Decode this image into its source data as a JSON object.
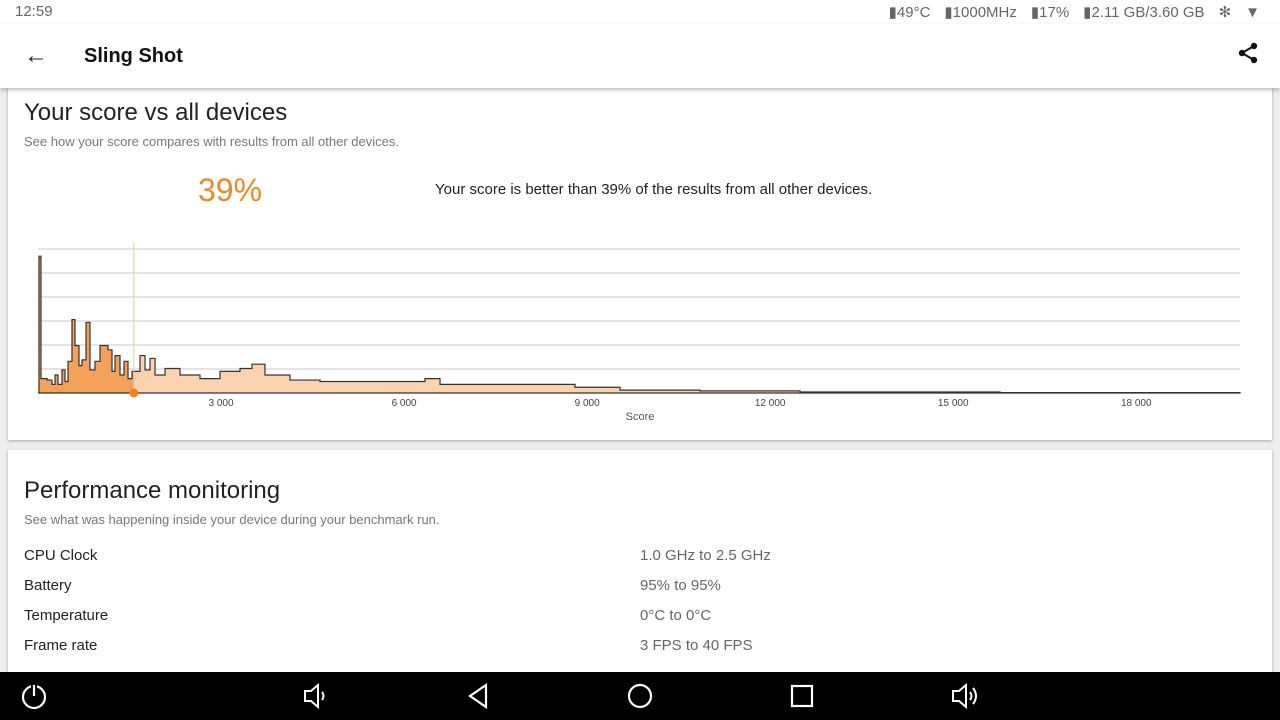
{
  "status": {
    "time": "12:59",
    "cpu_temp": "49°C",
    "cpu_freq": "1000MHz",
    "cpu_load": "17%",
    "ram": "2.11 GB/3.60 GB",
    "icons": [
      "bluetooth-icon",
      "wifi-icon"
    ]
  },
  "appbar": {
    "title": "Sling Shot"
  },
  "score_card": {
    "title": "Your score vs all devices",
    "subtitle": "See how your score compares with results from all other devices.",
    "percent": "39%",
    "summary": "Your score is better than 39% of the results from all other devices."
  },
  "chart_data": {
    "type": "area",
    "xlabel": "Score",
    "ylabel": "",
    "xlim": [
      0,
      19700
    ],
    "ylim": [
      0,
      100
    ],
    "grid": true,
    "x_ticks": [
      "3 000",
      "6 000",
      "9 000",
      "12 000",
      "15 000",
      "18 000"
    ],
    "x_tick_values": [
      3000,
      6000,
      9000,
      12000,
      15000,
      18000
    ],
    "your_score": 1570,
    "colors": {
      "below": "#f4a15a",
      "above": "#fbd3b0",
      "marker": "#f58220"
    },
    "points": [
      [
        0,
        0
      ],
      [
        16,
        95
      ],
      [
        49,
        10
      ],
      [
        148,
        9
      ],
      [
        229,
        6
      ],
      [
        279,
        12.5
      ],
      [
        328,
        6
      ],
      [
        393,
        16
      ],
      [
        443,
        8
      ],
      [
        492,
        22
      ],
      [
        557,
        51
      ],
      [
        606,
        33
      ],
      [
        672,
        19
      ],
      [
        721,
        23
      ],
      [
        787,
        49
      ],
      [
        852,
        16
      ],
      [
        934,
        22
      ],
      [
        1016,
        33
      ],
      [
        1082,
        33
      ],
      [
        1147,
        30
      ],
      [
        1213,
        15
      ],
      [
        1262,
        26
      ],
      [
        1344,
        12.5
      ],
      [
        1410,
        22
      ],
      [
        1475,
        10
      ],
      [
        1541,
        15
      ],
      [
        1672,
        26
      ],
      [
        1754,
        16
      ],
      [
        1836,
        24
      ],
      [
        1918,
        12.5
      ],
      [
        2082,
        17
      ],
      [
        2327,
        12.5
      ],
      [
        2655,
        10
      ],
      [
        2983,
        15
      ],
      [
        3311,
        17
      ],
      [
        3507,
        20
      ],
      [
        3720,
        12.5
      ],
      [
        4130,
        9
      ],
      [
        4622,
        8
      ],
      [
        5278,
        8
      ],
      [
        5934,
        8
      ],
      [
        6343,
        10
      ],
      [
        6589,
        6
      ],
      [
        7572,
        6
      ],
      [
        8801,
        4
      ],
      [
        9539,
        2
      ],
      [
        10850,
        1.5
      ],
      [
        12489,
        0.7
      ],
      [
        15767,
        0.3
      ],
      [
        19700,
        0
      ]
    ]
  },
  "perf_card": {
    "title": "Performance monitoring",
    "subtitle": "See what was happening inside your device during your benchmark run.",
    "rows": [
      {
        "label": "CPU Clock",
        "value": "1.0 GHz to 2.5 GHz"
      },
      {
        "label": "Battery",
        "value": "95% to 95%"
      },
      {
        "label": "Temperature",
        "value": "0°C to 0°C"
      },
      {
        "label": "Frame rate",
        "value": "3 FPS to 40 FPS"
      }
    ]
  }
}
